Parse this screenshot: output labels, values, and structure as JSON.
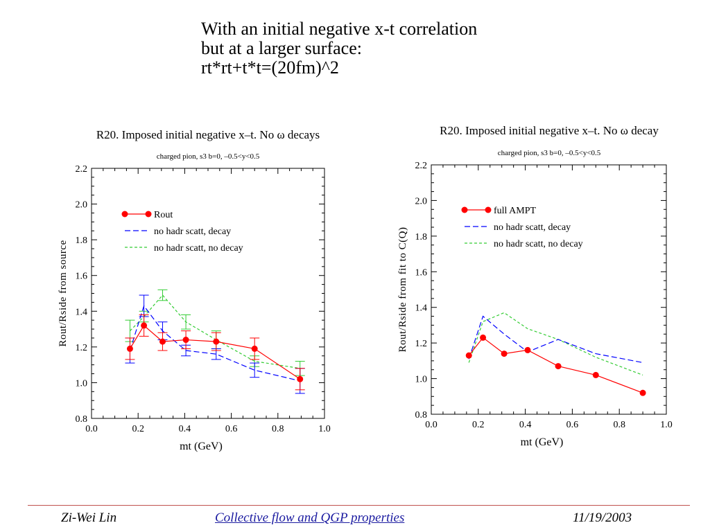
{
  "slide": {
    "title_lines": [
      "With an initial negative x-t correlation",
      "but at a larger surface:",
      "rt*rt+t*t=(20fm)^2"
    ]
  },
  "footer": {
    "author": "Zi-Wei Lin",
    "topic": "Collective flow and QGP properties",
    "date": "11/19/2003"
  },
  "chart_data": [
    {
      "type": "line",
      "title": "R20. Imposed initial negative x–t. No ω decays",
      "subtitle": "charged pion, s3 b=0, –0.5<y<0.5",
      "xlabel": "mt (GeV)",
      "ylabel": "Rout/Rside from source",
      "xlim": [
        0.0,
        1.0
      ],
      "ylim": [
        0.8,
        2.2
      ],
      "xticks": [
        "0.0",
        "0.2",
        "0.4",
        "0.6",
        "0.8",
        "1.0"
      ],
      "yticks": [
        "0.8",
        "1.0",
        "1.2",
        "1.4",
        "1.6",
        "1.8",
        "2.0",
        "2.2"
      ],
      "legend_position": "top-left",
      "series": [
        {
          "name": "Rout",
          "color": "#ff0000",
          "style": "solid-markers",
          "x": [
            0.165,
            0.225,
            0.305,
            0.405,
            0.535,
            0.7,
            0.895
          ],
          "y": [
            1.19,
            1.32,
            1.23,
            1.24,
            1.23,
            1.19,
            1.02
          ],
          "err": [
            0.06,
            0.06,
            0.05,
            0.05,
            0.05,
            0.06,
            0.06
          ]
        },
        {
          "name": "no hadr scatt, decay",
          "color": "#0000ff",
          "style": "dashed",
          "x": [
            0.165,
            0.225,
            0.305,
            0.405,
            0.535,
            0.7,
            0.895
          ],
          "y": [
            1.18,
            1.43,
            1.29,
            1.18,
            1.16,
            1.07,
            1.01
          ],
          "err": [
            0.07,
            0.06,
            0.05,
            0.03,
            0.03,
            0.04,
            0.07
          ]
        },
        {
          "name": "no hadr scatt, no decay",
          "color": "#33cc33",
          "style": "dashed-fine",
          "x": [
            0.165,
            0.225,
            0.305,
            0.405,
            0.535,
            0.7,
            0.895
          ],
          "y": [
            1.29,
            1.37,
            1.49,
            1.34,
            1.24,
            1.12,
            1.08
          ],
          "err": [
            0.06,
            0.03,
            0.03,
            0.04,
            0.05,
            0.03,
            0.04
          ]
        }
      ]
    },
    {
      "type": "line",
      "title": "R20. Imposed initial negative x–t. No ω decay",
      "subtitle": "charged pion, s3 b=0, –0.5<y<0.5",
      "xlabel": "mt (GeV)",
      "ylabel": "Rout/Rside from fit to C(Q)",
      "xlim": [
        0.0,
        1.0
      ],
      "ylim": [
        0.8,
        2.2
      ],
      "xticks": [
        "0.0",
        "0.2",
        "0.4",
        "0.6",
        "0.8",
        "1.0"
      ],
      "yticks": [
        "0.8",
        "1.0",
        "1.2",
        "1.4",
        "1.6",
        "1.8",
        "2.0",
        "2.2"
      ],
      "legend_position": "top-left",
      "series": [
        {
          "name": "full AMPT",
          "color": "#ff0000",
          "style": "solid-markers",
          "x": [
            0.16,
            0.22,
            0.31,
            0.41,
            0.54,
            0.7,
            0.9
          ],
          "y": [
            1.13,
            1.23,
            1.14,
            1.16,
            1.07,
            1.02,
            0.92
          ]
        },
        {
          "name": "no hadr scatt, decay",
          "color": "#0000ff",
          "style": "dashed",
          "x": [
            0.16,
            0.22,
            0.31,
            0.41,
            0.54,
            0.7,
            0.9
          ],
          "y": [
            1.11,
            1.35,
            1.25,
            1.15,
            1.22,
            1.14,
            1.09
          ]
        },
        {
          "name": "no hadr scatt, no decay",
          "color": "#33cc33",
          "style": "dashed-fine",
          "x": [
            0.16,
            0.22,
            0.31,
            0.41,
            0.54,
            0.7,
            0.9
          ],
          "y": [
            1.09,
            1.32,
            1.37,
            1.28,
            1.22,
            1.12,
            1.02
          ]
        }
      ]
    }
  ]
}
